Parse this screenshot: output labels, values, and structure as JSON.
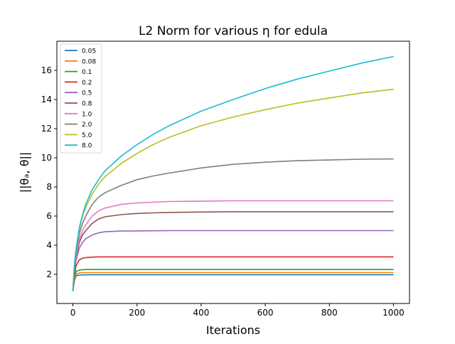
{
  "chart_data": {
    "type": "line",
    "title": "L2 Norm for various η for edula",
    "xlabel": "Iterations",
    "ylabel": "||θₐ, θ||",
    "xlim": [
      -50,
      1050
    ],
    "ylim": [
      0,
      18
    ],
    "xticks": [
      0,
      200,
      400,
      600,
      800,
      1000
    ],
    "yticks": [
      2,
      4,
      6,
      8,
      10,
      12,
      14,
      16
    ],
    "grid": false,
    "legend_position": "top-left",
    "x": [
      0,
      5,
      10,
      20,
      30,
      40,
      60,
      80,
      100,
      150,
      200,
      250,
      300,
      400,
      500,
      600,
      700,
      800,
      900,
      1000
    ],
    "series": [
      {
        "name": "0.05",
        "color": "#1f77b4",
        "values": [
          0.85,
          1.6,
          1.9,
          1.95,
          1.96,
          1.97,
          1.97,
          1.97,
          1.97,
          1.97,
          1.97,
          1.97,
          1.97,
          1.97,
          1.97,
          1.97,
          1.97,
          1.97,
          1.97,
          1.97
        ]
      },
      {
        "name": "0.08",
        "color": "#ff7f0e",
        "values": [
          0.85,
          1.7,
          2.0,
          2.1,
          2.12,
          2.12,
          2.12,
          2.12,
          2.12,
          2.12,
          2.12,
          2.12,
          2.12,
          2.12,
          2.12,
          2.12,
          2.12,
          2.12,
          2.12,
          2.12
        ]
      },
      {
        "name": "0.1",
        "color": "#2ca02c",
        "values": [
          0.85,
          1.8,
          2.2,
          2.3,
          2.32,
          2.33,
          2.33,
          2.33,
          2.33,
          2.33,
          2.33,
          2.33,
          2.33,
          2.33,
          2.33,
          2.33,
          2.33,
          2.33,
          2.33,
          2.33
        ]
      },
      {
        "name": "0.2",
        "color": "#d62728",
        "values": [
          0.85,
          2.0,
          2.6,
          3.0,
          3.1,
          3.15,
          3.18,
          3.2,
          3.2,
          3.2,
          3.2,
          3.2,
          3.2,
          3.2,
          3.2,
          3.2,
          3.2,
          3.2,
          3.2,
          3.2
        ]
      },
      {
        "name": "0.5",
        "color": "#9467bd",
        "values": [
          0.85,
          2.3,
          3.0,
          3.8,
          4.2,
          4.45,
          4.7,
          4.85,
          4.92,
          4.97,
          4.98,
          4.99,
          5.0,
          5.0,
          5.0,
          5.0,
          5.0,
          5.0,
          5.0,
          5.0
        ]
      },
      {
        "name": "0.8",
        "color": "#8c564b",
        "values": [
          0.85,
          2.4,
          3.2,
          4.2,
          4.7,
          5.0,
          5.5,
          5.8,
          5.95,
          6.1,
          6.18,
          6.22,
          6.25,
          6.28,
          6.3,
          6.3,
          6.3,
          6.3,
          6.3,
          6.3
        ]
      },
      {
        "name": "1.0",
        "color": "#e377c2",
        "values": [
          0.85,
          2.5,
          3.3,
          4.4,
          5.0,
          5.4,
          6.0,
          6.35,
          6.55,
          6.8,
          6.9,
          6.95,
          7.0,
          7.02,
          7.05,
          7.05,
          7.05,
          7.05,
          7.05,
          7.05
        ]
      },
      {
        "name": "2.0",
        "color": "#7f7f7f",
        "values": [
          0.85,
          2.6,
          3.5,
          4.8,
          5.5,
          6.0,
          6.8,
          7.3,
          7.6,
          8.1,
          8.5,
          8.75,
          8.95,
          9.3,
          9.55,
          9.7,
          9.8,
          9.85,
          9.9,
          9.92
        ]
      },
      {
        "name": "5.0",
        "color": "#bcbd22",
        "values": [
          0.85,
          2.7,
          3.7,
          5.1,
          6.0,
          6.6,
          7.5,
          8.2,
          8.7,
          9.6,
          10.3,
          10.9,
          11.4,
          12.2,
          12.8,
          13.3,
          13.75,
          14.1,
          14.45,
          14.7
        ]
      },
      {
        "name": "8.0",
        "color": "#17becf",
        "values": [
          0.85,
          2.75,
          3.8,
          5.2,
          6.1,
          6.8,
          7.8,
          8.5,
          9.1,
          10.1,
          10.9,
          11.6,
          12.2,
          13.2,
          14.0,
          14.75,
          15.4,
          15.95,
          16.5,
          16.95
        ]
      }
    ]
  }
}
